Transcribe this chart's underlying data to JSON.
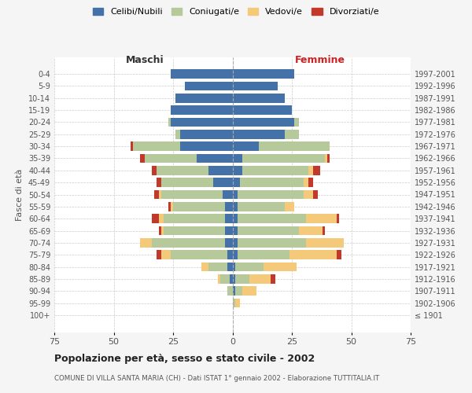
{
  "age_groups": [
    "100+",
    "95-99",
    "90-94",
    "85-89",
    "80-84",
    "75-79",
    "70-74",
    "65-69",
    "60-64",
    "55-59",
    "50-54",
    "45-49",
    "40-44",
    "35-39",
    "30-34",
    "25-29",
    "20-24",
    "15-19",
    "10-14",
    "5-9",
    "0-4"
  ],
  "birth_years": [
    "≤ 1901",
    "1902-1906",
    "1907-1911",
    "1912-1916",
    "1917-1921",
    "1922-1926",
    "1927-1931",
    "1932-1936",
    "1937-1941",
    "1942-1946",
    "1947-1951",
    "1952-1956",
    "1957-1961",
    "1962-1966",
    "1967-1971",
    "1972-1976",
    "1977-1981",
    "1982-1986",
    "1987-1991",
    "1992-1996",
    "1997-2001"
  ],
  "colors": {
    "celibi": "#4472a8",
    "coniugati": "#b5c99a",
    "vedovi": "#f5c97a",
    "divorziati": "#c0392b"
  },
  "maschi": {
    "celibi": [
      0,
      0,
      0,
      1,
      2,
      2,
      3,
      3,
      3,
      3,
      4,
      8,
      10,
      15,
      22,
      22,
      26,
      26,
      24,
      20,
      26
    ],
    "coniugati": [
      0,
      0,
      2,
      4,
      8,
      24,
      31,
      26,
      26,
      22,
      26,
      22,
      22,
      22,
      20,
      2,
      1,
      0,
      0,
      0,
      0
    ],
    "vedovi": [
      0,
      0,
      0,
      1,
      3,
      4,
      5,
      1,
      2,
      1,
      1,
      0,
      0,
      0,
      0,
      0,
      0,
      0,
      0,
      0,
      0
    ],
    "divorziati": [
      0,
      0,
      0,
      0,
      0,
      2,
      0,
      1,
      3,
      1,
      2,
      2,
      2,
      2,
      1,
      0,
      0,
      0,
      0,
      0,
      0
    ]
  },
  "femmine": {
    "celibi": [
      0,
      0,
      1,
      1,
      1,
      2,
      2,
      2,
      2,
      2,
      2,
      3,
      4,
      4,
      11,
      22,
      26,
      25,
      22,
      19,
      26
    ],
    "coniugati": [
      0,
      1,
      3,
      6,
      12,
      22,
      29,
      26,
      29,
      20,
      28,
      27,
      28,
      35,
      30,
      6,
      2,
      0,
      0,
      0,
      0
    ],
    "vedovi": [
      0,
      2,
      6,
      9,
      14,
      20,
      16,
      10,
      13,
      4,
      4,
      2,
      2,
      1,
      0,
      0,
      0,
      0,
      0,
      0,
      0
    ],
    "divorziati": [
      0,
      0,
      0,
      2,
      0,
      2,
      0,
      1,
      1,
      0,
      2,
      2,
      3,
      1,
      0,
      0,
      0,
      0,
      0,
      0,
      0
    ]
  },
  "xlim": 75,
  "title": "Popolazione per età, sesso e stato civile - 2002",
  "subtitle": "COMUNE DI VILLA SANTA MARIA (CH) - Dati ISTAT 1° gennaio 2002 - Elaborazione TUTTITALIA.IT",
  "ylabel_left": "Fasce di età",
  "xlabel_maschi": "Maschi",
  "xlabel_femmine": "Femmine",
  "bg_color": "#f5f5f5",
  "plot_bg": "#ffffff",
  "grid_color": "#cccccc",
  "maschi_color": "#333333",
  "femmine_color": "#cc2222"
}
